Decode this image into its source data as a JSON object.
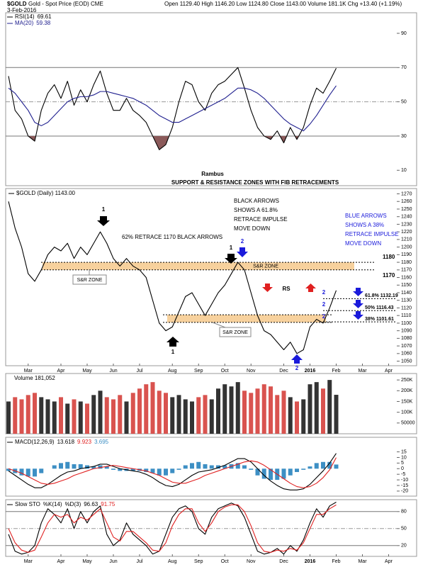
{
  "header": {
    "symbol": "$GOLD",
    "name": "Gold - Spot Price (EOD) CME",
    "date": "3-Feb-2016",
    "quote": "Open 1129.40  High 1146.20  Low 1124.80  Close 1143.00  Volume 181.1K  Chg +13.40 (+1.19%)"
  },
  "chart_data": [
    {
      "type": "line",
      "note": "Rambus",
      "subtitle": "SUPPORT & RESISTANCE ZONES WITH FIB RETRACEMENTS",
      "ylim": [
        1,
        102
      ],
      "yticks": [
        10,
        30,
        50,
        70,
        90
      ],
      "levels": [
        70,
        50,
        30
      ],
      "oversold": 30,
      "oversold_color": "#8b5a5a",
      "series": [
        {
          "name": "RSI(14)",
          "color": "#000000",
          "values": [
            65,
            45,
            40,
            30,
            27,
            45,
            55,
            60,
            52,
            62,
            48,
            57,
            50,
            60,
            68,
            55,
            45,
            45,
            52,
            45,
            42,
            38,
            30,
            22,
            25,
            35,
            50,
            62,
            60,
            50,
            45,
            55,
            60,
            62,
            66,
            70,
            58,
            45,
            35,
            30,
            28,
            33,
            26,
            35,
            28,
            35,
            48,
            58,
            55,
            62,
            69.61,
            null,
            null,
            null,
            null,
            null,
            null,
            null,
            null
          ]
        },
        {
          "name": "MA(20)",
          "color": "#20208f",
          "values": [
            58,
            55,
            50,
            45,
            38,
            36,
            38,
            42,
            46,
            50,
            52,
            53,
            53,
            54,
            56,
            56,
            55,
            54,
            53,
            52,
            50,
            48,
            45,
            42,
            40,
            38,
            38,
            40,
            42,
            44,
            46,
            48,
            50,
            52,
            55,
            58,
            58,
            57,
            55,
            52,
            48,
            44,
            40,
            37,
            35,
            33,
            37,
            42,
            48,
            54,
            59.38,
            null,
            null,
            null,
            null,
            null,
            null,
            null,
            null
          ]
        }
      ]
    },
    {
      "type": "line",
      "title": "$GOLD (Daily) 1143.00",
      "color": "#000000",
      "categories": [
        null,
        null,
        null,
        "Mar",
        null,
        null,
        null,
        null,
        "Apr",
        null,
        null,
        null,
        "May",
        null,
        null,
        null,
        "Jun",
        null,
        null,
        null,
        "Jul",
        null,
        null,
        null,
        null,
        "Aug",
        null,
        null,
        null,
        "Sep",
        null,
        null,
        null,
        "Oct",
        null,
        null,
        null,
        "Nov",
        null,
        null,
        null,
        null,
        "Dec",
        null,
        null,
        null,
        "2016",
        null,
        null,
        null,
        "Feb",
        null,
        null,
        null,
        "Mar",
        null,
        null,
        null,
        "Apr"
      ],
      "values": [
        1260,
        1225,
        1200,
        1165,
        1155,
        1170,
        1190,
        1200,
        1195,
        1205,
        1185,
        1200,
        1190,
        1205,
        1220,
        1205,
        1185,
        1175,
        1185,
        1175,
        1170,
        1160,
        1130,
        1100,
        1090,
        1095,
        1115,
        1135,
        1140,
        1125,
        1110,
        1125,
        1140,
        1150,
        1165,
        1180,
        1170,
        1140,
        1110,
        1090,
        1085,
        1075,
        1065,
        1075,
        1060,
        1065,
        1095,
        1105,
        1100,
        1120,
        1143,
        null,
        null,
        null,
        null,
        null,
        null,
        null,
        null
      ],
      "ylim": [
        1044,
        1277
      ],
      "yticks": [
        1050,
        1060,
        1070,
        1080,
        1090,
        1100,
        1110,
        1120,
        1130,
        1140,
        1150,
        1160,
        1170,
        1180,
        1190,
        1200,
        1210,
        1220,
        1230,
        1240,
        1250,
        1260,
        1270
      ],
      "zones": [
        {
          "low": 1170,
          "high": 1180,
          "label": "S&R ZONE",
          "color": "#f6c98c"
        },
        {
          "low": 1101,
          "high": 1111,
          "color": "#f6c98c"
        }
      ],
      "levels": [
        {
          "value": 1180,
          "label": "1180"
        },
        {
          "value": 1170,
          "label": "1170"
        }
      ],
      "fib_levels": [
        {
          "value": 1132.19,
          "label": "61.8% 1132.19"
        },
        {
          "value": 1116.43,
          "label": "50% 1116.43"
        },
        {
          "value": 1101.61,
          "label": "38% 1101.61"
        }
      ],
      "annotations": {
        "retrace_note": "62% RETRACE 1170 BLACK ARROWS",
        "black_note": [
          "BLACK ARROWS",
          "SHOWS A 61.8%",
          "RETRACE IMPULSE",
          "MOVE DOWN"
        ],
        "blue_note": [
          "BLUE ARROWS",
          "SHOWS A 38%",
          "RETRACE IMPULSE",
          "MOVE DOWN"
        ],
        "wave_labels": [
          "1",
          "1",
          "1",
          "2",
          "2",
          "2",
          "2",
          "2"
        ],
        "zone_callouts": [
          "S&R ZONE",
          "S&R ZONE"
        ],
        "rs": "RS"
      }
    },
    {
      "type": "bar",
      "legend": "Volume 181,052",
      "up_color": "#333333",
      "down_color": "#d9534f",
      "ylim": [
        0,
        280000
      ],
      "yticks": [
        50000,
        {
          "value": 100000,
          "label": "100K"
        },
        {
          "value": 150000,
          "label": "150K"
        },
        {
          "value": 200000,
          "label": "200K"
        },
        {
          "value": 250000,
          "label": "250K"
        }
      ],
      "values": [
        150000,
        170000,
        160000,
        180000,
        190000,
        170000,
        160000,
        150000,
        170000,
        140000,
        160000,
        150000,
        140000,
        180000,
        200000,
        170000,
        160000,
        180000,
        150000,
        190000,
        210000,
        230000,
        240000,
        200000,
        190000,
        170000,
        180000,
        160000,
        150000,
        170000,
        180000,
        160000,
        210000,
        230000,
        220000,
        240000,
        200000,
        190000,
        210000,
        230000,
        220000,
        180000,
        200000,
        170000,
        150000,
        160000,
        230000,
        240000,
        210000,
        250000,
        181052,
        null,
        null,
        null,
        null,
        null,
        null,
        null,
        null
      ]
    },
    {
      "type": "line",
      "ylim": [
        -24.5,
        28
      ],
      "yticks": [
        -20,
        -15,
        -10,
        -5,
        0,
        5,
        10,
        15
      ],
      "series": [
        {
          "name": "MACD(12,26,9)",
          "color": "#000000",
          "values": [
            -2,
            -6,
            -10,
            -14,
            -17,
            -17,
            -14,
            -10,
            -6,
            -3,
            -2,
            0,
            1,
            2,
            4,
            4,
            2,
            0,
            -1,
            -2,
            -3,
            -5,
            -8,
            -12,
            -15,
            -16,
            -14,
            -10,
            -6,
            -3,
            -2,
            -1,
            1,
            3,
            6,
            9,
            9,
            6,
            0,
            -6,
            -11,
            -15,
            -18,
            -19,
            -19,
            -18,
            -14,
            -8,
            -2,
            5,
            13.618,
            null,
            null,
            null,
            null,
            null,
            null,
            null,
            null
          ]
        },
        {
          "color": "#e02020",
          "values": [
            0,
            -2,
            -4,
            -7,
            -10,
            -13,
            -14,
            -13,
            -11,
            -9,
            -6,
            -4,
            -2,
            0,
            1,
            2,
            3,
            2,
            1,
            0,
            -1,
            -2,
            -4,
            -6,
            -9,
            -12,
            -13,
            -13,
            -11,
            -9,
            -6,
            -4,
            -2,
            0,
            2,
            4,
            6,
            7,
            6,
            3,
            -1,
            -5,
            -9,
            -13,
            -16,
            -17,
            -16,
            -13,
            -8,
            -1,
            9.923,
            null,
            null,
            null,
            null,
            null,
            null,
            null,
            null
          ]
        },
        {
          "type": "bar",
          "color": "#3d8fc4",
          "values": [
            -2,
            -4,
            -6,
            -7,
            -7,
            -4,
            0,
            3,
            5,
            6,
            4,
            4,
            3,
            2,
            3,
            2,
            -1,
            -2,
            -2,
            -2,
            -2,
            -3,
            -4,
            -6,
            -6,
            -4,
            -1,
            3,
            5,
            6,
            4,
            3,
            3,
            3,
            4,
            5,
            3,
            -1,
            -6,
            -9,
            -10,
            -10,
            -9,
            -6,
            -3,
            -1,
            2,
            5,
            6,
            6,
            3.695,
            null,
            null,
            null,
            null,
            null,
            null,
            null,
            null
          ]
        }
      ]
    },
    {
      "type": "line",
      "legend": "Slow STO",
      "categories": [
        null,
        null,
        null,
        "Mar",
        null,
        null,
        null,
        null,
        "Apr",
        null,
        null,
        null,
        "May",
        null,
        null,
        null,
        "Jun",
        null,
        null,
        null,
        "Jul",
        null,
        null,
        null,
        null,
        "Aug",
        null,
        null,
        null,
        "Sep",
        null,
        null,
        null,
        "Oct",
        null,
        null,
        null,
        "Nov",
        null,
        null,
        null,
        null,
        "Dec",
        null,
        null,
        null,
        "2016",
        null,
        null,
        null,
        "Feb",
        null,
        null,
        null,
        "Mar",
        null,
        null,
        null,
        "Apr"
      ],
      "ylim": [
        1,
        101
      ],
      "yticks": [
        20,
        50,
        80
      ],
      "levels": [
        80,
        50,
        20
      ],
      "series": [
        {
          "name": "%K(14)",
          "color": "#000000",
          "values": [
            40,
            10,
            5,
            8,
            20,
            60,
            85,
            75,
            60,
            85,
            50,
            80,
            60,
            80,
            90,
            40,
            20,
            30,
            60,
            40,
            30,
            20,
            5,
            10,
            40,
            70,
            85,
            90,
            80,
            50,
            40,
            70,
            85,
            90,
            95,
            90,
            70,
            40,
            10,
            5,
            8,
            15,
            5,
            20,
            10,
            30,
            60,
            85,
            70,
            90,
            96.63,
            null,
            null,
            null,
            null,
            null,
            null,
            null,
            null
          ]
        },
        {
          "name": "%D(3)",
          "color": "#e02020",
          "values": [
            50,
            25,
            12,
            8,
            12,
            35,
            60,
            75,
            70,
            75,
            60,
            70,
            65,
            75,
            85,
            60,
            35,
            28,
            45,
            45,
            35,
            25,
            12,
            10,
            25,
            55,
            75,
            85,
            85,
            60,
            45,
            60,
            80,
            88,
            92,
            92,
            80,
            55,
            25,
            10,
            8,
            12,
            10,
            15,
            12,
            25,
            50,
            75,
            75,
            85,
            91.75,
            null,
            null,
            null,
            null,
            null,
            null,
            null,
            null
          ]
        }
      ]
    }
  ]
}
